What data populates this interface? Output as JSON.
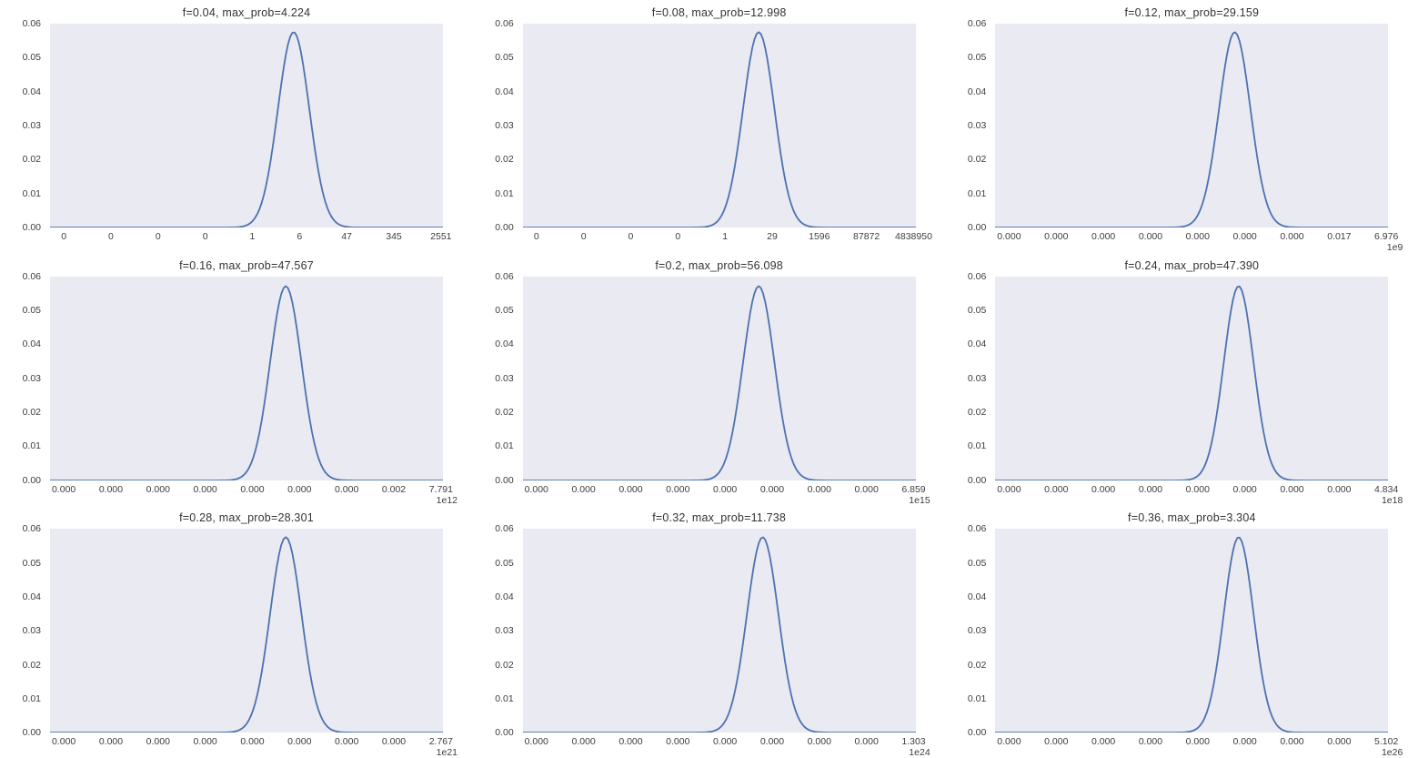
{
  "page": {
    "background": "#ffffff"
  },
  "colors": {
    "line": "#4c72b0",
    "plot_bg": "#eaeaf2",
    "tick_text": "#3d3d3d",
    "title_text": "#333333"
  },
  "yticks": [
    "0.00",
    "0.01",
    "0.02",
    "0.03",
    "0.04",
    "0.05",
    "0.06"
  ],
  "chart_data": [
    {
      "type": "line",
      "title": "f=0.04, max_prob=4.224",
      "xlabel": "",
      "ylabel": "",
      "ylim": [
        0,
        0.06
      ],
      "grid": false,
      "legend": false,
      "xticks": [
        "0",
        "0",
        "0",
        "0",
        "1",
        "6",
        "47",
        "345",
        "2551"
      ],
      "offset": "",
      "curve": {
        "mu": 0.62,
        "sigma": 0.04,
        "peak": 0.0575
      }
    },
    {
      "type": "line",
      "title": "f=0.08, max_prob=12.998",
      "xlabel": "",
      "ylabel": "",
      "ylim": [
        0,
        0.06
      ],
      "grid": false,
      "legend": false,
      "xticks": [
        "0",
        "0",
        "0",
        "0",
        "1",
        "29",
        "1596",
        "87872",
        "4838950"
      ],
      "offset": "",
      "curve": {
        "mu": 0.6,
        "sigma": 0.04,
        "peak": 0.0575
      }
    },
    {
      "type": "line",
      "title": "f=0.12, max_prob=29.159",
      "xlabel": "",
      "ylabel": "",
      "ylim": [
        0,
        0.06
      ],
      "grid": false,
      "legend": false,
      "xticks": [
        "0.000",
        "0.000",
        "0.000",
        "0.000",
        "0.000",
        "0.000",
        "0.000",
        "0.017",
        "6.976"
      ],
      "offset": "1e9",
      "curve": {
        "mu": 0.61,
        "sigma": 0.04,
        "peak": 0.0575
      }
    },
    {
      "type": "line",
      "title": "f=0.16, max_prob=47.567",
      "xlabel": "",
      "ylabel": "",
      "ylim": [
        0,
        0.06
      ],
      "grid": false,
      "legend": false,
      "xticks": [
        "0.000",
        "0.000",
        "0.000",
        "0.000",
        "0.000",
        "0.000",
        "0.000",
        "0.002",
        "7.791"
      ],
      "offset": "1e12",
      "curve": {
        "mu": 0.6,
        "sigma": 0.04,
        "peak": 0.0572
      }
    },
    {
      "type": "line",
      "title": "f=0.2, max_prob=56.098",
      "xlabel": "",
      "ylabel": "",
      "ylim": [
        0,
        0.06
      ],
      "grid": false,
      "legend": false,
      "xticks": [
        "0.000",
        "0.000",
        "0.000",
        "0.000",
        "0.000",
        "0.000",
        "0.000",
        "0.000",
        "6.859"
      ],
      "offset": "1e15",
      "curve": {
        "mu": 0.6,
        "sigma": 0.04,
        "peak": 0.0572
      }
    },
    {
      "type": "line",
      "title": "f=0.24, max_prob=47.390",
      "xlabel": "",
      "ylabel": "",
      "ylim": [
        0,
        0.06
      ],
      "grid": false,
      "legend": false,
      "xticks": [
        "0.000",
        "0.000",
        "0.000",
        "0.000",
        "0.000",
        "0.000",
        "0.000",
        "0.000",
        "4.834"
      ],
      "offset": "1e18",
      "curve": {
        "mu": 0.62,
        "sigma": 0.038,
        "peak": 0.0572
      }
    },
    {
      "type": "line",
      "title": "f=0.28, max_prob=28.301",
      "xlabel": "",
      "ylabel": "",
      "ylim": [
        0,
        0.06
      ],
      "grid": false,
      "legend": false,
      "xticks": [
        "0.000",
        "0.000",
        "0.000",
        "0.000",
        "0.000",
        "0.000",
        "0.000",
        "0.000",
        "2.767"
      ],
      "offset": "1e21",
      "curve": {
        "mu": 0.6,
        "sigma": 0.04,
        "peak": 0.0575
      }
    },
    {
      "type": "line",
      "title": "f=0.32, max_prob=11.738",
      "xlabel": "",
      "ylabel": "",
      "ylim": [
        0,
        0.06
      ],
      "grid": false,
      "legend": false,
      "xticks": [
        "0.000",
        "0.000",
        "0.000",
        "0.000",
        "0.000",
        "0.000",
        "0.000",
        "0.000",
        "1.303"
      ],
      "offset": "1e24",
      "curve": {
        "mu": 0.61,
        "sigma": 0.04,
        "peak": 0.0575
      }
    },
    {
      "type": "line",
      "title": "f=0.36, max_prob=3.304",
      "xlabel": "",
      "ylabel": "",
      "ylim": [
        0,
        0.06
      ],
      "grid": false,
      "legend": false,
      "xticks": [
        "0.000",
        "0.000",
        "0.000",
        "0.000",
        "0.000",
        "0.000",
        "0.000",
        "0.000",
        "5.102"
      ],
      "offset": "1e26",
      "curve": {
        "mu": 0.62,
        "sigma": 0.038,
        "peak": 0.0575
      }
    }
  ],
  "xtick_layout": {
    "first_frac": 0.035,
    "last_frac": 0.995
  }
}
